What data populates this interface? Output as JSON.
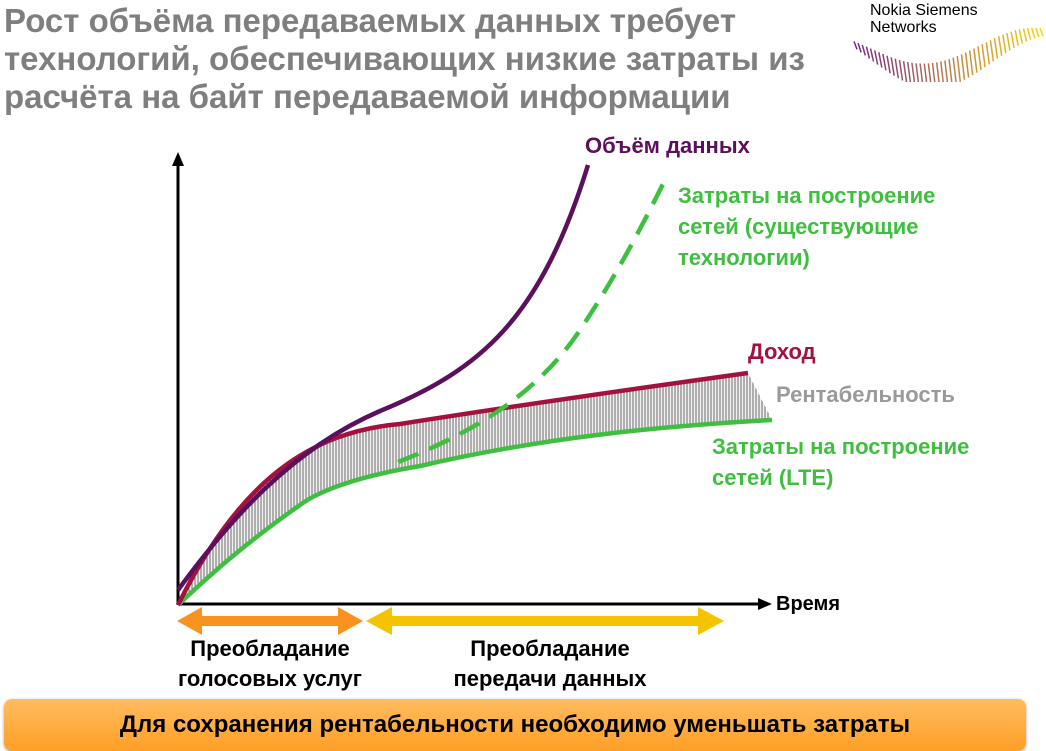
{
  "header": {
    "title_lines": [
      "Рост объёма передаваемых данных требует",
      "технологий, обеспечивающих низкие затраты из",
      "расчёта на байт передаваемой информации"
    ],
    "logo_lines": [
      "Nokia Siemens",
      "Networks"
    ]
  },
  "diagram": {
    "curve_labels": {
      "data_volume": "Объём данных",
      "cost_existing": "Затраты на построение сетей (существующие технологии)",
      "cost_existing_lines": [
        "Затраты на построение",
        "сетей (существующие",
        "технологии)"
      ],
      "revenue": "Доход",
      "profitability": "Рентабельность",
      "cost_lte": "Затраты на построение сетей (LTE)",
      "cost_lte_lines": [
        "Затраты на построение",
        "сетей (LTE)"
      ]
    },
    "x_axis_label": "Время",
    "periods": [
      {
        "label_lines": [
          "Преобладание",
          "голосовых услуг"
        ],
        "color": "#f7931e"
      },
      {
        "label_lines": [
          "Преобладание",
          "передачи данных"
        ],
        "color": "#f5c400"
      }
    ],
    "colors": {
      "data_volume": "#5c0f5c",
      "cost_existing": "#3fbf3f",
      "revenue": "#a3123f",
      "profitability": "#9a9a9a",
      "cost_lte": "#3fbf3f"
    }
  },
  "footer": {
    "banner_text": "Для сохранения рентабельности необходимо уменьшать затраты",
    "banner_color": "#ffa733"
  }
}
